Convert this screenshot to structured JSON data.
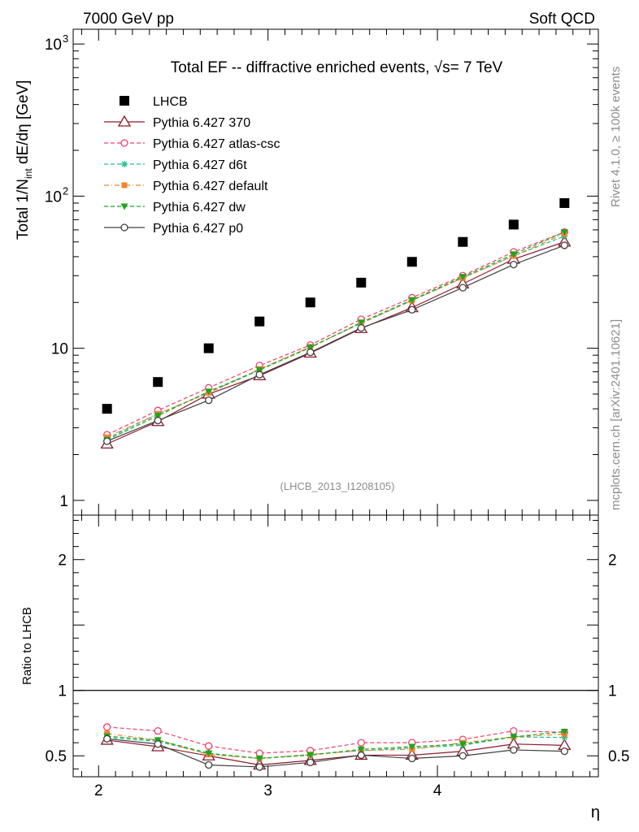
{
  "header": {
    "left": "7000 GeV pp",
    "right": "Soft QCD"
  },
  "side_text": {
    "rivet": "Rivet 4.1.0, ≥ 100k events",
    "mcplots": "mcplots.cern.ch [arXiv:2401.10621]"
  },
  "chart_data": [
    {
      "type": "line",
      "title": "Total EF -- diffractive enriched events, ",
      "title_sqrt": "√s",
      "title_tail": "= 7 TeV",
      "analysis_id": "(LHCB_2013_I1208105)",
      "ylabel_prefix": "Total 1/N",
      "ylabel_sub": "int",
      "ylabel_suffix": "  dE/dη [GeV]",
      "yscale": "log",
      "ylim": [
        0.8,
        1250
      ],
      "xlim": [
        1.85,
        4.95
      ],
      "y_ticks": [
        {
          "value": 1,
          "label": "1"
        },
        {
          "value": 10,
          "label": "10"
        },
        {
          "value": 100,
          "label": "10",
          "exp": "2"
        },
        {
          "value": 1000,
          "label": "10",
          "exp": "3"
        }
      ],
      "x": [
        2.05,
        2.35,
        2.65,
        2.95,
        3.25,
        3.55,
        3.85,
        4.15,
        4.45,
        4.75
      ],
      "legend_position": "top-left",
      "series": [
        {
          "name": "LHCB",
          "style": "data",
          "color": "#000000",
          "marker": "square",
          "values": [
            4.0,
            6.0,
            10.0,
            15.0,
            20.0,
            27.0,
            37.0,
            50.0,
            65.0,
            90.0
          ]
        },
        {
          "name": "Pythia 6.427 370",
          "style": "solid",
          "color": "#8b1a2b",
          "marker": "triangle-open",
          "values": [
            2.35,
            3.3,
            5.0,
            6.6,
            9.3,
            13.5,
            18.5,
            26.5,
            38.5,
            50.0
          ]
        },
        {
          "name": "Pythia 6.427 atlas-csc",
          "style": "dashed",
          "color": "#f0406a",
          "marker": "circle-open",
          "values": [
            2.7,
            3.9,
            5.5,
            7.7,
            10.5,
            15.5,
            21.5,
            30.0,
            43.0,
            58.0
          ]
        },
        {
          "name": "Pythia 6.427 d6t",
          "style": "dashed",
          "color": "#1fbf8f",
          "marker": "star",
          "values": [
            2.55,
            3.7,
            5.1,
            7.2,
            10.2,
            14.6,
            20.6,
            29.0,
            40.5,
            54.5
          ]
        },
        {
          "name": "Pythia 6.427 default",
          "style": "dashdot",
          "color": "#f58231",
          "marker": "square-filled",
          "values": [
            2.6,
            3.7,
            5.1,
            7.3,
            10.2,
            14.6,
            20.6,
            29.0,
            40.5,
            56.5
          ]
        },
        {
          "name": "Pythia 6.427 dw",
          "style": "dashed",
          "color": "#1ea51e",
          "marker": "triangle-down",
          "values": [
            2.5,
            3.6,
            5.2,
            7.2,
            10.1,
            14.8,
            20.8,
            29.5,
            41.5,
            58.0
          ]
        },
        {
          "name": "Pythia 6.427 p0",
          "style": "solid",
          "color": "#404040",
          "marker": "circle-open",
          "values": [
            2.45,
            3.35,
            4.55,
            6.7,
            9.4,
            13.6,
            17.9,
            25.0,
            35.5,
            47.5
          ]
        }
      ]
    },
    {
      "type": "line",
      "ylabel": "Ratio to LHCB",
      "xlabel": "η",
      "ylim": [
        0.34,
        2.34
      ],
      "xlim": [
        1.85,
        4.95
      ],
      "y_ticks": [
        {
          "value": 0.5,
          "label": "0.5"
        },
        {
          "value": 1,
          "label": "1"
        },
        {
          "value": 2,
          "label": "2"
        }
      ],
      "x_ticks": [
        {
          "value": 2,
          "label": "2"
        },
        {
          "value": 3,
          "label": "3"
        },
        {
          "value": 4,
          "label": "4"
        }
      ],
      "reference_line": 1,
      "x": [
        2.05,
        2.35,
        2.65,
        2.95,
        3.25,
        3.55,
        3.85,
        4.15,
        4.45,
        4.75
      ],
      "series": [
        {
          "name": "Pythia 6.427 370",
          "values": [
            0.62,
            0.57,
            0.5,
            0.43,
            0.465,
            0.505,
            0.505,
            0.535,
            0.59,
            0.58
          ]
        },
        {
          "name": "Pythia 6.427 atlas-csc",
          "values": [
            0.72,
            0.69,
            0.575,
            0.52,
            0.54,
            0.6,
            0.6,
            0.625,
            0.69,
            0.68
          ]
        },
        {
          "name": "Pythia 6.427 d6t",
          "values": [
            0.64,
            0.61,
            0.515,
            0.48,
            0.51,
            0.54,
            0.56,
            0.58,
            0.645,
            0.64
          ]
        },
        {
          "name": "Pythia 6.427 default",
          "values": [
            0.67,
            0.62,
            0.51,
            0.48,
            0.51,
            0.54,
            0.55,
            0.6,
            0.645,
            0.665
          ]
        },
        {
          "name": "Pythia 6.427 dw",
          "values": [
            0.65,
            0.62,
            0.52,
            0.48,
            0.505,
            0.55,
            0.57,
            0.59,
            0.645,
            0.685
          ]
        },
        {
          "name": "Pythia 6.427 p0",
          "values": [
            0.63,
            0.59,
            0.43,
            0.415,
            0.45,
            0.505,
            0.48,
            0.5,
            0.545,
            0.535
          ]
        }
      ]
    }
  ]
}
